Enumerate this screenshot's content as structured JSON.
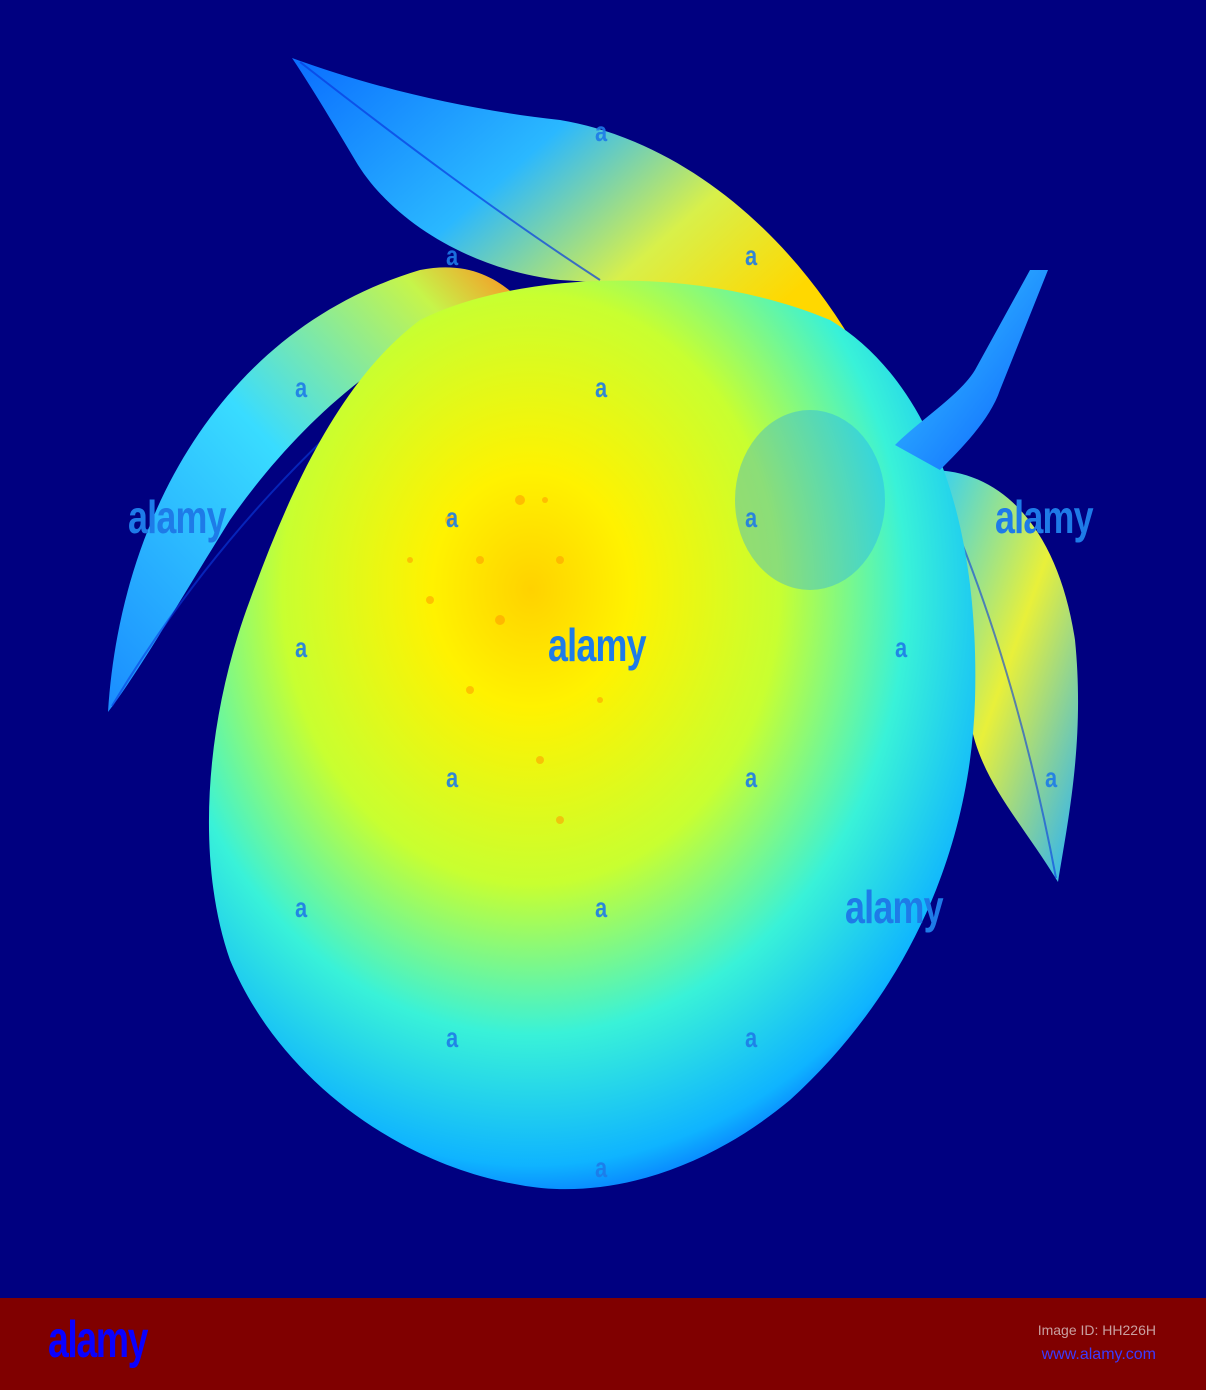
{
  "watermark": {
    "small_text": "a",
    "big_text": "alamy"
  },
  "footer": {
    "logo_text": "alamy",
    "image_id": "Image ID: HH226H",
    "url": "www.alamy.com"
  },
  "colors": {
    "background": "#000080",
    "footer_bar": "#800000",
    "fruit_center": "#ffe600",
    "fruit_edge": "#00d8ff",
    "leaf": "#1ec8ff"
  }
}
